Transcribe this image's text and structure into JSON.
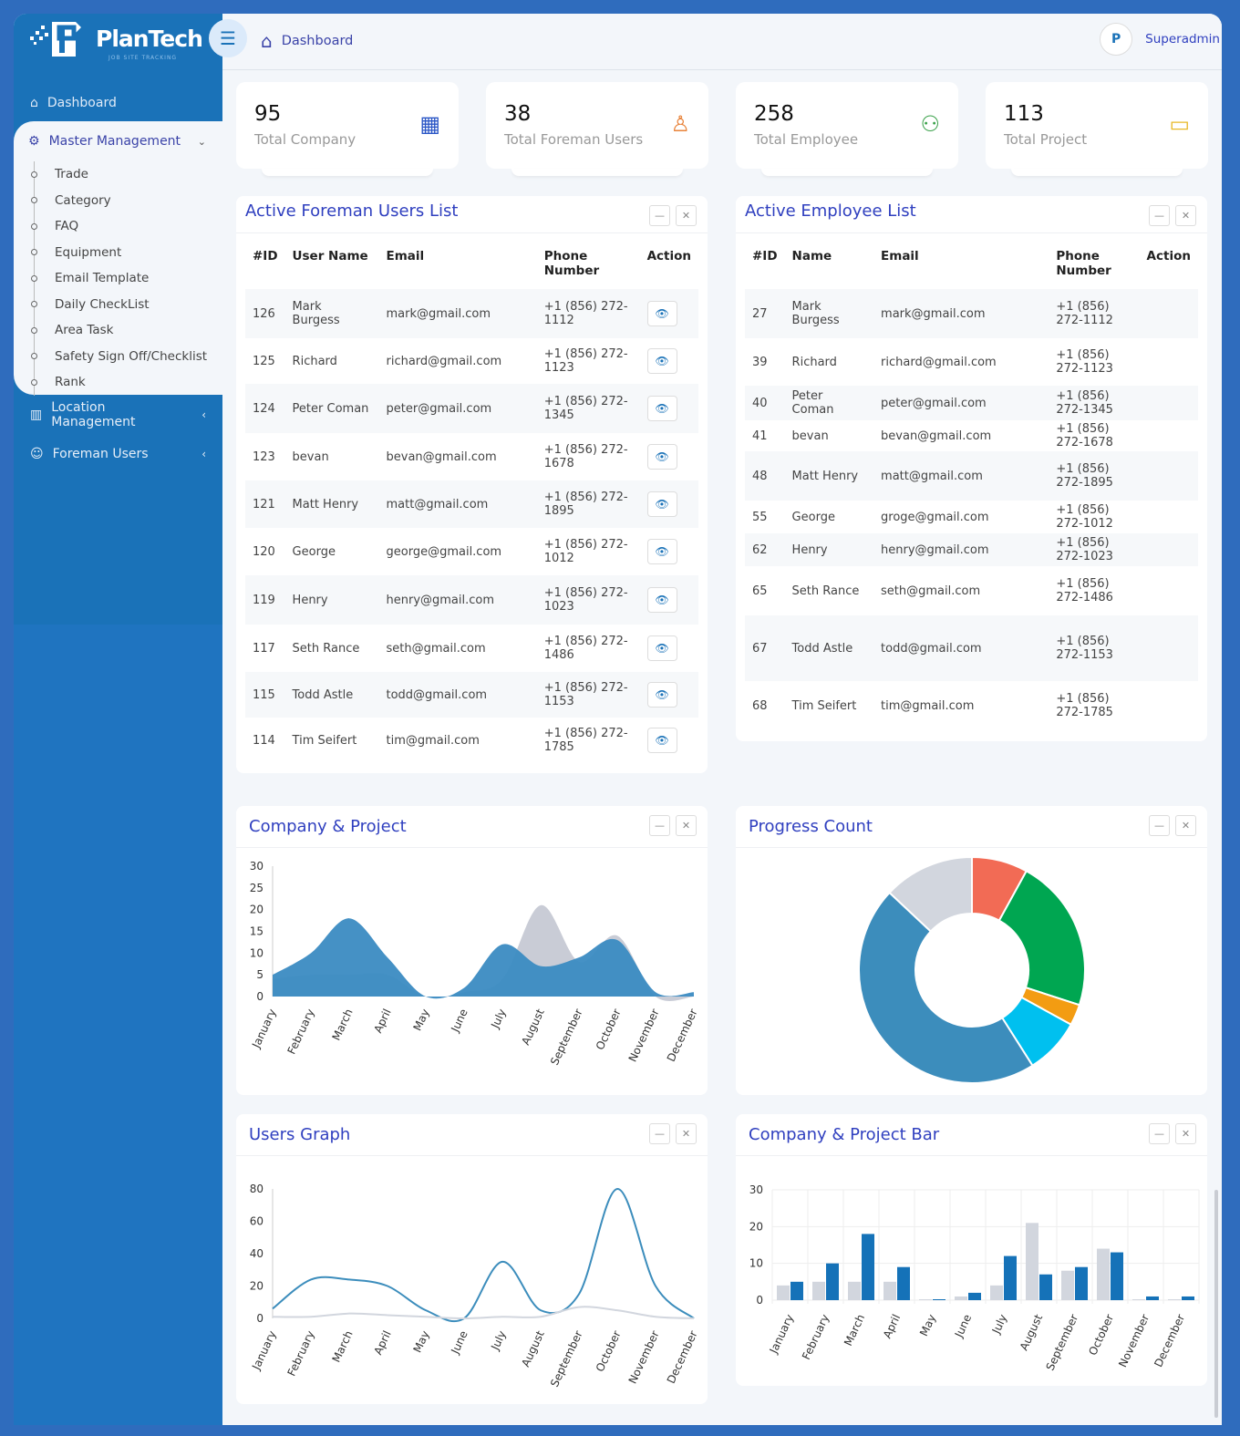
{
  "brand": {
    "name": "PlanTech",
    "tagline": "JOB SITE TRACKING"
  },
  "sidebar": {
    "dashboard": "Dashboard",
    "master": {
      "label": "Master Management",
      "items": [
        "Trade",
        "Category",
        "FAQ",
        "Equipment",
        "Email Template",
        "Daily CheckList",
        "Area Task",
        "Safety Sign Off/Checklist",
        "Rank"
      ]
    },
    "location": "Location Management",
    "foreman": "Foreman Users"
  },
  "header": {
    "breadcrumb": "Dashboard",
    "user": "Superadmin",
    "avatar_text": "PlanTech"
  },
  "stats": [
    {
      "value": "95",
      "label": "Total Company",
      "icon": "building-icon",
      "color": "#2a56c6"
    },
    {
      "value": "38",
      "label": "Total Foreman Users",
      "icon": "user-icon",
      "color": "#e8833a"
    },
    {
      "value": "258",
      "label": "Total Employee",
      "icon": "users-icon",
      "color": "#3aa14a"
    },
    {
      "value": "113",
      "label": "Total Project",
      "icon": "briefcase-icon",
      "color": "#e8b92a"
    }
  ],
  "foreman_list": {
    "title": "Active Foreman Users List",
    "columns": [
      "#ID",
      "User Name",
      "Email",
      "Phone Number",
      "Action"
    ],
    "rows": [
      [
        "126",
        "Mark Burgess",
        "mark@gmail.com",
        "+1 (856) 272-1112"
      ],
      [
        "125",
        "Richard",
        "richard@gmail.com",
        "+1 (856) 272-1123"
      ],
      [
        "124",
        "Peter Coman",
        "peter@gmail.com",
        "+1 (856) 272-1345"
      ],
      [
        "123",
        "bevan",
        "bevan@gmail.com",
        "+1 (856) 272-1678"
      ],
      [
        "121",
        "Matt Henry",
        "matt@gmail.com",
        "+1 (856) 272-1895"
      ],
      [
        "120",
        "George",
        "george@gmail.com",
        "+1 (856) 272-1012"
      ],
      [
        "119",
        "Henry",
        "henry@gmail.com",
        "+1 (856) 272-1023"
      ],
      [
        "117",
        "Seth Rance",
        "seth@gmail.com",
        "+1 (856) 272-1486"
      ],
      [
        "115",
        "Todd Astle",
        "todd@gmail.com",
        "+1 (856) 272-1153"
      ],
      [
        "114",
        "Tim Seifert",
        "tim@gmail.com",
        "+1 (856) 272-1785"
      ]
    ]
  },
  "employee_list": {
    "title": "Active Employee List",
    "columns": [
      "#ID",
      "Name",
      "Email",
      "Phone Number",
      "Action"
    ],
    "rows": [
      [
        "27",
        "Mark Burgess",
        "mark@gmail.com",
        "+1 (856) 272-1112"
      ],
      [
        "39",
        "Richard",
        "richard@gmail.com",
        "+1 (856) 272-1123"
      ],
      [
        "40",
        "Peter Coman",
        "peter@gmail.com",
        "+1 (856) 272-1345"
      ],
      [
        "41",
        "bevan",
        "bevan@gmail.com",
        "+1 (856) 272-1678"
      ],
      [
        "48",
        "Matt Henry",
        "matt@gmail.com",
        "+1 (856) 272-1895"
      ],
      [
        "55",
        "George",
        "groge@gmail.com",
        "+1 (856) 272-1012"
      ],
      [
        "62",
        "Henry",
        "henry@gmail.com",
        "+1 (856) 272-1023"
      ],
      [
        "65",
        "Seth Rance",
        "seth@gmail.com",
        "+1 (856) 272-1486"
      ],
      [
        "67",
        "Todd Astle",
        "todd@gmail.com",
        "+1 (856) 272-1153"
      ],
      [
        "68",
        "Tim Seifert",
        "tim@gmail.com",
        "+1 (856) 272-1785"
      ]
    ]
  },
  "chart_data": [
    {
      "title": "Company & Project",
      "type": "area",
      "categories": [
        "January",
        "February",
        "March",
        "April",
        "May",
        "June",
        "July",
        "August",
        "September",
        "October",
        "November",
        "December"
      ],
      "series": [
        {
          "values": [
            4,
            5,
            5,
            5,
            0,
            1,
            4,
            21,
            8,
            14,
            0,
            0
          ],
          "color": "#c9ccd6"
        },
        {
          "values": [
            5,
            10,
            18,
            9,
            0,
            2,
            12,
            7,
            9,
            13,
            1,
            1
          ],
          "color": "#3b8bc2"
        }
      ],
      "ylim": [
        0,
        30
      ],
      "yticks": [
        0,
        5,
        10,
        15,
        20,
        25,
        30
      ]
    },
    {
      "title": "Progress Count",
      "type": "pie",
      "donut": true,
      "values": [
        8,
        22,
        3,
        8,
        46,
        13
      ],
      "colors": [
        "#f26b55",
        "#00a651",
        "#f39c12",
        "#00c0ef",
        "#3c8dbc",
        "#d2d6de"
      ]
    },
    {
      "title": "Users Graph",
      "type": "line",
      "categories": [
        "January",
        "February",
        "March",
        "April",
        "May",
        "June",
        "July",
        "August",
        "September",
        "October",
        "November",
        "December"
      ],
      "series": [
        {
          "values": [
            6,
            24,
            24,
            20,
            5,
            0,
            35,
            5,
            15,
            80,
            20,
            0
          ],
          "color": "#3c8dbc"
        },
        {
          "values": [
            1,
            1,
            3,
            2,
            1,
            0,
            1,
            1,
            7,
            5,
            1,
            0
          ],
          "color": "#d2d6de"
        }
      ],
      "ylim": [
        0,
        80
      ],
      "yticks": [
        0,
        20,
        40,
        60,
        80
      ]
    },
    {
      "title": "Company & Project Bar",
      "type": "bar",
      "categories": [
        "January",
        "February",
        "March",
        "April",
        "May",
        "June",
        "July",
        "August",
        "September",
        "October",
        "November",
        "December"
      ],
      "series": [
        {
          "values": [
            4,
            5,
            5,
            5,
            0,
            1,
            4,
            21,
            8,
            14,
            0,
            0
          ],
          "color": "#d2d6de"
        },
        {
          "values": [
            5,
            10,
            18,
            9,
            0,
            2,
            12,
            7,
            9,
            13,
            1,
            1
          ],
          "color": "#1572b8"
        }
      ],
      "ylim": [
        0,
        30
      ],
      "yticks": [
        0,
        10,
        20,
        30
      ],
      "grid": true
    }
  ]
}
